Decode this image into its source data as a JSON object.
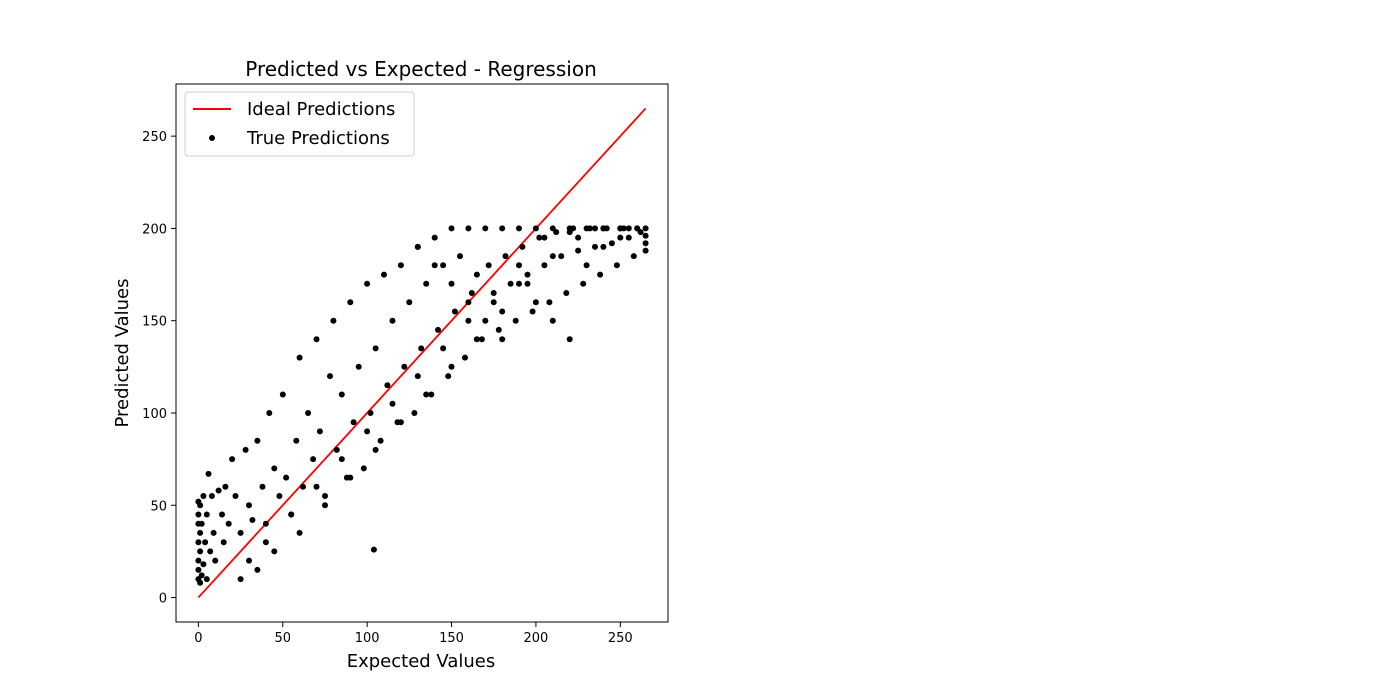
{
  "chart_data": {
    "type": "scatter",
    "title": "Predicted vs Expected - Regression",
    "xlabel": "Expected Values",
    "ylabel": "Predicted Values",
    "xlim": [
      -13.25,
      278.25
    ],
    "ylim": [
      -13.25,
      278.25
    ],
    "xticks": [
      0,
      50,
      100,
      150,
      200,
      250
    ],
    "yticks": [
      0,
      50,
      100,
      150,
      200,
      250
    ],
    "grid": false,
    "legend_position": "upper-left",
    "series": [
      {
        "name": "Ideal Predictions",
        "kind": "line",
        "color": "#ff0000",
        "x": [
          0,
          265
        ],
        "y": [
          0,
          265
        ]
      },
      {
        "name": "True Predictions",
        "kind": "scatter",
        "color": "#000000",
        "x": [
          0,
          0,
          0,
          0,
          0,
          0,
          0,
          1,
          1,
          1,
          1,
          2,
          2,
          3,
          3,
          4,
          5,
          5,
          6,
          7,
          8,
          9,
          10,
          12,
          14,
          15,
          16,
          18,
          20,
          22,
          25,
          28,
          30,
          32,
          35,
          38,
          40,
          42,
          45,
          48,
          50,
          52,
          55,
          58,
          60,
          62,
          65,
          68,
          70,
          72,
          75,
          78,
          80,
          82,
          85,
          88,
          90,
          92,
          95,
          98,
          100,
          102,
          104,
          105,
          108,
          110,
          112,
          115,
          118,
          120,
          122,
          125,
          128,
          130,
          132,
          135,
          138,
          140,
          142,
          145,
          148,
          150,
          152,
          155,
          158,
          160,
          162,
          165,
          168,
          170,
          172,
          175,
          178,
          180,
          182,
          185,
          188,
          190,
          192,
          195,
          198,
          200,
          202,
          205,
          208,
          210,
          212,
          215,
          218,
          220,
          222,
          225,
          228,
          230,
          232,
          235,
          238,
          240,
          242,
          245,
          248,
          250,
          252,
          255,
          258,
          260,
          262,
          265,
          265,
          265,
          265,
          30,
          40,
          55,
          70,
          85,
          100,
          115,
          130,
          145,
          160,
          175,
          190,
          205,
          220,
          235,
          250,
          25,
          35,
          45,
          60,
          75,
          90,
          105,
          120,
          135,
          150,
          165,
          180,
          195,
          210,
          225,
          240,
          255,
          130,
          140,
          150,
          160,
          170,
          180,
          190,
          200,
          210,
          220,
          230,
          240,
          250,
          260
        ],
        "y": [
          10,
          15,
          20,
          30,
          40,
          45,
          52,
          8,
          25,
          35,
          50,
          12,
          40,
          18,
          55,
          30,
          45,
          10,
          67,
          25,
          55,
          35,
          20,
          58,
          45,
          30,
          60,
          40,
          75,
          55,
          35,
          80,
          50,
          42,
          85,
          60,
          40,
          100,
          70,
          55,
          110,
          65,
          45,
          85,
          130,
          60,
          100,
          75,
          140,
          90,
          55,
          120,
          150,
          80,
          110,
          65,
          160,
          95,
          125,
          70,
          170,
          100,
          26,
          135,
          85,
          175,
          115,
          150,
          95,
          180,
          125,
          160,
          100,
          190,
          135,
          170,
          110,
          195,
          145,
          180,
          120,
          200,
          155,
          185,
          130,
          200,
          165,
          175,
          140,
          200,
          180,
          160,
          145,
          200,
          185,
          170,
          150,
          200,
          190,
          175,
          155,
          200,
          195,
          180,
          160,
          200,
          198,
          185,
          165,
          200,
          200,
          188,
          170,
          200,
          200,
          190,
          175,
          200,
          200,
          192,
          180,
          200,
          200,
          195,
          185,
          200,
          198,
          200,
          188,
          192,
          196,
          20,
          30,
          45,
          60,
          75,
          90,
          105,
          120,
          135,
          150,
          165,
          180,
          195,
          198,
          200,
          200,
          10,
          15,
          25,
          35,
          50,
          65,
          80,
          95,
          110,
          125,
          140,
          155,
          170,
          185,
          195,
          200,
          200,
          190,
          180,
          170,
          160,
          150,
          140,
          170,
          160,
          150,
          140,
          180,
          190,
          195,
          200
        ]
      }
    ]
  }
}
